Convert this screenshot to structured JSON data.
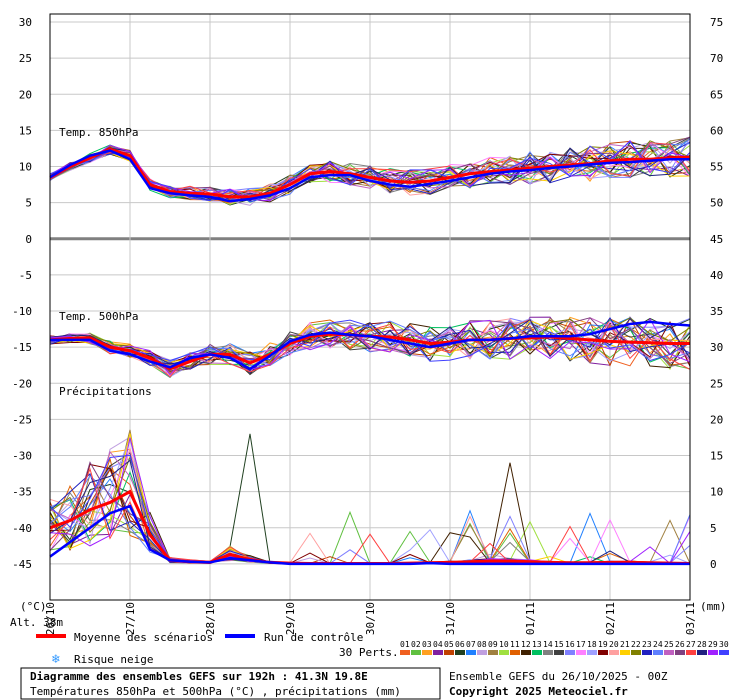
{
  "chart_data": {
    "type": "line",
    "left_axis": {
      "ticks": [
        30,
        25,
        20,
        15,
        10,
        5,
        0,
        -5,
        -10,
        -15,
        -20,
        -25,
        -30,
        -35,
        -40,
        -45
      ],
      "range": [
        -50,
        30
      ],
      "unit_label": "(°C)"
    },
    "right_temp_axis": {
      "ticks": [
        75,
        70,
        65,
        60,
        55,
        50,
        45,
        40,
        35,
        30,
        25
      ],
      "note": "850hPa temp offset +45 on right scale above 0"
    },
    "right_precip_axis": {
      "ticks": [
        20,
        15,
        10,
        5,
        0
      ],
      "unit_label": "(mm)"
    },
    "x_labels": [
      "26/10",
      "27/10",
      "28/10",
      "29/10",
      "30/10",
      "31/10",
      "01/11",
      "02/11",
      "03/11"
    ],
    "grid": true,
    "labels": {
      "t850": "Temp. 850hPa",
      "t500": "Temp. 500hPa",
      "precip": "Précipitations",
      "alt": "Alt. 38m"
    },
    "series": [
      {
        "name": "Moyenne des scénarios",
        "color": "#ff0000",
        "panel": "t850",
        "values": [
          8.5,
          10.0,
          11.2,
          12.4,
          11.5,
          7.5,
          6.5,
          6.3,
          6.2,
          5.8,
          5.8,
          6.3,
          7.5,
          9.0,
          9.3,
          9.0,
          8.5,
          8.0,
          7.8,
          8.0,
          8.5,
          9.0,
          9.3,
          9.5,
          9.8,
          10.0,
          10.2,
          10.4,
          10.8,
          11.0,
          11.0,
          11.2,
          11.3
        ]
      },
      {
        "name": "Run de contrôle",
        "color": "#0000ff",
        "panel": "t850",
        "values": [
          8.5,
          10.2,
          11.5,
          12.2,
          11.0,
          7.0,
          6.3,
          6.0,
          5.8,
          5.2,
          5.5,
          6.0,
          7.0,
          8.5,
          8.8,
          8.8,
          8.0,
          7.5,
          7.2,
          7.6,
          8.0,
          8.5,
          9.0,
          9.3,
          9.5,
          9.8,
          10.0,
          10.3,
          10.5,
          10.6,
          10.8,
          11.0,
          11.0
        ]
      },
      {
        "name": "Moyenne des scénarios",
        "color": "#ff0000",
        "panel": "t500",
        "values": [
          -14.0,
          -13.8,
          -13.7,
          -15.0,
          -15.5,
          -16.5,
          -18.0,
          -17.0,
          -16.0,
          -16.0,
          -17.2,
          -16.0,
          -14.5,
          -13.5,
          -13.2,
          -13.3,
          -13.5,
          -13.6,
          -14.0,
          -14.5,
          -14.3,
          -14.0,
          -14.0,
          -13.8,
          -13.7,
          -13.6,
          -13.8,
          -14.0,
          -14.2,
          -14.3,
          -14.4,
          -14.5,
          -14.5
        ]
      },
      {
        "name": "Run de contrôle",
        "color": "#0000ff",
        "panel": "t500",
        "values": [
          -14.0,
          -14.0,
          -14.0,
          -15.5,
          -16.0,
          -17.0,
          -17.8,
          -16.5,
          -16.0,
          -16.5,
          -18.0,
          -16.2,
          -14.2,
          -13.3,
          -13.0,
          -13.3,
          -13.5,
          -14.0,
          -14.5,
          -15.0,
          -14.5,
          -14.0,
          -14.0,
          -13.8,
          -13.5,
          -13.5,
          -13.5,
          -13.2,
          -12.5,
          -11.8,
          -11.5,
          -11.8,
          -12.0
        ]
      },
      {
        "name": "Moyenne des scénarios",
        "color": "#ff0000",
        "panel": "precip",
        "values": [
          5.0,
          6.0,
          7.5,
          8.5,
          10.0,
          4.0,
          0.5,
          0.3,
          0.2,
          1.3,
          0.6,
          0.2,
          0.1,
          0.05,
          0.05,
          0.05,
          0.05,
          0.05,
          0.1,
          0.15,
          0.2,
          0.3,
          0.4,
          0.4,
          0.3,
          0.2,
          0.15,
          0.15,
          0.2,
          0.2,
          0.15,
          0.1,
          0.05
        ]
      },
      {
        "name": "Run de contrôle",
        "color": "#0000ff",
        "panel": "precip",
        "values": [
          1.0,
          3.0,
          5.0,
          7.0,
          8.0,
          2.0,
          0.5,
          0.3,
          0.2,
          0.8,
          0.5,
          0.2,
          0.0,
          0.0,
          0.0,
          0.0,
          0.0,
          0.0,
          0.0,
          0.1,
          0.0,
          0.0,
          0.0,
          0.0,
          0.0,
          0.0,
          0.0,
          0.0,
          0.0,
          0.0,
          0.0,
          0.0,
          0.0
        ]
      }
    ],
    "ensemble_spread": {
      "t850": 1.2,
      "t500": 1.6
    }
  },
  "legend": {
    "mean_label": "Moyenne des scénarios",
    "mean_color": "#ff0000",
    "control_label": "Run de contrôle",
    "control_color": "#0000ff",
    "snow_label": "Risque neige",
    "perts_label": "30 Perts.",
    "pert_numbers": [
      "01",
      "02",
      "03",
      "04",
      "05",
      "06",
      "07",
      "08",
      "09",
      "10",
      "11",
      "12",
      "13",
      "14",
      "15",
      "16",
      "17",
      "18",
      "19",
      "20",
      "21",
      "22",
      "23",
      "24",
      "25",
      "26",
      "27",
      "28",
      "29",
      "30"
    ],
    "pert_colors": [
      "#f06020",
      "#60c040",
      "#ffa020",
      "#8020a0",
      "#c04000",
      "#204020",
      "#2080ff",
      "#c0a0e0",
      "#a08040",
      "#a0e040",
      "#e06000",
      "#402000",
      "#00c060",
      "#808080",
      "#404040",
      "#8080ff",
      "#ff80ff",
      "#a0a0ff",
      "#800000",
      "#ffa0a0",
      "#ffd000",
      "#808000",
      "#2020c0",
      "#6080ff",
      "#c060c0",
      "#804080",
      "#ff4040",
      "#202080",
      "#a020ff",
      "#4040ff"
    ]
  },
  "info": {
    "title": "Diagramme des ensembles GEFS sur 192h : 41.3N 19.8E",
    "subtitle": "Températures 850hPa et 500hPa (°C) , précipitations (mm)",
    "run": "Ensemble GEFS du 26/10/2025 - 00Z",
    "copyright": "Copyright 2025 Meteociel.fr"
  }
}
